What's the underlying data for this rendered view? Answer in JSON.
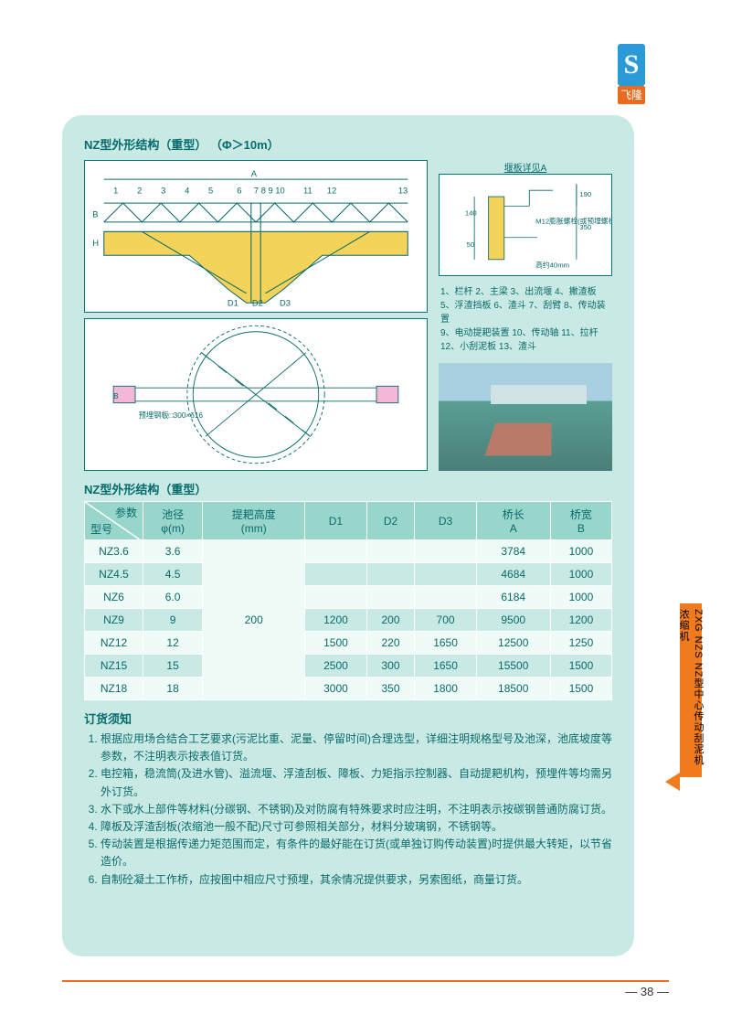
{
  "logo": {
    "letter": "S",
    "brand": "飞隆"
  },
  "diagram_title": "NZ型外形结构（重型） （Φ＞10m）",
  "detail_title": "堰板详见A",
  "detail_dims": {
    "d1": "140",
    "d2": "50",
    "d3": "190",
    "d4": "350"
  },
  "detail_note1": "M12膨胀螺栓(或预埋螺栓)固定",
  "detail_note2": "高约40mm",
  "plan_note": "预埋钢板□300×δ16",
  "legend_lines": [
    "1、栏杆 2、主梁 3、出流堰 4、撇渣板",
    "5、浮渣挡板 6、渣斗 7、刮臂 8、传动装置",
    "9、电动提耙装置 10、传动轴 11、拉杆",
    "12、小刮泥板 13、渣斗"
  ],
  "table_title": "NZ型外形结构（重型）",
  "table": {
    "header": {
      "corner_param": "参数",
      "corner_model": "型号",
      "cols": [
        "池径\nφ(m)",
        "提耙高度\n(mm)",
        "D1",
        "D2",
        "D3",
        "桥长\nA",
        "桥宽\nB"
      ]
    },
    "rake_height": "200",
    "rows": [
      {
        "model": "NZ3.6",
        "dia": "3.6",
        "d1": "",
        "d2": "",
        "d3": "",
        "a": "3784",
        "b": "1000"
      },
      {
        "model": "NZ4.5",
        "dia": "4.5",
        "d1": "",
        "d2": "",
        "d3": "",
        "a": "4684",
        "b": "1000"
      },
      {
        "model": "NZ6",
        "dia": "6.0",
        "d1": "",
        "d2": "",
        "d3": "",
        "a": "6184",
        "b": "1000"
      },
      {
        "model": "NZ9",
        "dia": "9",
        "d1": "1200",
        "d2": "200",
        "d3": "700",
        "a": "9500",
        "b": "1200"
      },
      {
        "model": "NZ12",
        "dia": "12",
        "d1": "1500",
        "d2": "220",
        "d3": "1650",
        "a": "12500",
        "b": "1250"
      },
      {
        "model": "NZ15",
        "dia": "15",
        "d1": "2500",
        "d2": "300",
        "d3": "1650",
        "a": "15500",
        "b": "1500"
      },
      {
        "model": "NZ18",
        "dia": "18",
        "d1": "3000",
        "d2": "350",
        "d3": "1800",
        "a": "18500",
        "b": "1500"
      }
    ],
    "colors": {
      "header_bg": "#98d6cc",
      "row_odd_bg": "#eefbf6",
      "row_even_bg": "#c9eae4",
      "border": "#ffffff",
      "text": "#0a6a6a"
    }
  },
  "notes_title": "订货须知",
  "notes": [
    "根据应用场合结合工艺要求(污泥比重、泥量、停留时间)合理选型，详细注明规格型号及池深，池底坡度等参数，不注明表示按表值订货。",
    "电控箱，稳流筒(及进水管)、溢流堰、浮渣刮板、障板、力矩指示控制器、自动提耙机构，预埋件等均需另外订货。",
    "水下或水上部件等材料(分碳钢、不锈钢)及对防腐有特殊要求时应注明，不注明表示按碳钢普通防腐订货。",
    "障板及浮渣刮板(浓缩池一般不配)尺寸可参照相关部分，材料分玻璃钢，不锈钢等。",
    "传动装置是根据传递力矩范围而定，有条件的最好能在订货(或单独订购传动装置)时提供最大转矩，以节省造价。",
    "自制砼凝土工作桥，应按图中相应尺寸预埋，其余情况提供要求，另索图纸，商量订货。"
  ],
  "side_tab": "ZXG  NZS  NZ型中心传动刮泥机  浓缩机",
  "page_number": "— 38 —",
  "palette": {
    "card_bg": "#c9eae4",
    "accent_orange": "#f07b1f",
    "accent_blue": "#2a9bd6",
    "text": "#0a6a6a",
    "diagram_fill": "#f3d35a"
  }
}
